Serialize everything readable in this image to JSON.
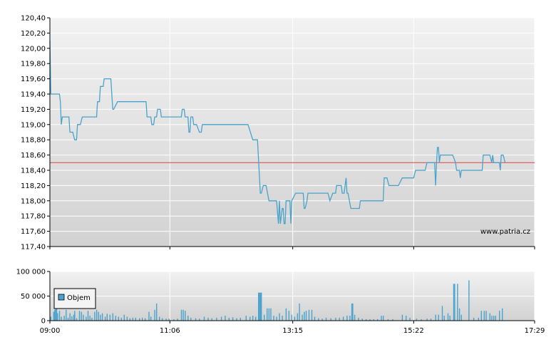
{
  "watermark": "www.patria.cz",
  "colors": {
    "price_line": "#4aa3cc",
    "reference_line": "#e04040",
    "volume_bar": "#4aa3cc",
    "grid": "#ffffff",
    "plot_bg_top": "#f2f2f2",
    "plot_bg_bottom": "#d2d2d2"
  },
  "chart_data": [
    {
      "type": "line",
      "name": "price",
      "x_tick_labels": [
        "09:00",
        "11:06",
        "13:15",
        "15:22",
        "17:29"
      ],
      "x_range": [
        "09:00",
        "17:29"
      ],
      "y_tick_labels": [
        "117,40",
        "117,60",
        "117,80",
        "118,00",
        "118,20",
        "118,40",
        "118,60",
        "118,80",
        "119,00",
        "119,20",
        "119,40",
        "119,60",
        "119,80",
        "120,00",
        "120,20",
        "120,40"
      ],
      "ylim": [
        117.4,
        120.4
      ],
      "reference_value": 118.5,
      "grid": true,
      "series": [
        {
          "points": [
            [
              "09:00",
              120.1
            ],
            [
              "09:01",
              119.4
            ],
            [
              "09:10",
              119.4
            ],
            [
              "09:11",
              119.3
            ],
            [
              "09:12",
              119.0
            ],
            [
              "09:13",
              119.1
            ],
            [
              "09:20",
              119.1
            ],
            [
              "09:21",
              118.9
            ],
            [
              "09:24",
              118.9
            ],
            [
              "09:26",
              118.8
            ],
            [
              "09:28",
              118.8
            ],
            [
              "09:29",
              119.0
            ],
            [
              "09:32",
              119.0
            ],
            [
              "09:34",
              119.1
            ],
            [
              "09:49",
              119.1
            ],
            [
              "09:50",
              119.3
            ],
            [
              "09:52",
              119.3
            ],
            [
              "09:53",
              119.5
            ],
            [
              "09:56",
              119.5
            ],
            [
              "09:57",
              119.6
            ],
            [
              "10:04",
              119.6
            ],
            [
              "10:06",
              119.2
            ],
            [
              "10:07",
              119.2
            ],
            [
              "10:11",
              119.3
            ],
            [
              "10:41",
              119.3
            ],
            [
              "10:42",
              119.1
            ],
            [
              "10:46",
              119.1
            ],
            [
              "10:47",
              119.0
            ],
            [
              "10:49",
              119.0
            ],
            [
              "10:50",
              119.1
            ],
            [
              "10:52",
              119.1
            ],
            [
              "10:53",
              119.2
            ],
            [
              "10:56",
              119.2
            ],
            [
              "10:57",
              119.1
            ],
            [
              "11:18",
              119.1
            ],
            [
              "11:19",
              119.2
            ],
            [
              "11:21",
              119.2
            ],
            [
              "11:22",
              119.1
            ],
            [
              "11:25",
              119.1
            ],
            [
              "11:26",
              118.9
            ],
            [
              "11:27",
              118.9
            ],
            [
              "11:28",
              119.1
            ],
            [
              "11:30",
              119.1
            ],
            [
              "11:31",
              119.0
            ],
            [
              "11:34",
              119.0
            ],
            [
              "11:37",
              118.9
            ],
            [
              "11:39",
              118.9
            ],
            [
              "11:40",
              119.0
            ],
            [
              "12:28",
              119.0
            ],
            [
              "12:33",
              118.8
            ],
            [
              "12:38",
              118.8
            ],
            [
              "12:41",
              118.1
            ],
            [
              "12:42",
              118.1
            ],
            [
              "12:44",
              118.2
            ],
            [
              "12:47",
              118.2
            ],
            [
              "12:50",
              118.0
            ],
            [
              "12:58",
              118.0
            ],
            [
              "13:00",
              117.7
            ],
            [
              "13:01",
              118.0
            ],
            [
              "13:02",
              117.7
            ],
            [
              "13:04",
              117.9
            ],
            [
              "13:05",
              117.9
            ],
            [
              "13:06",
              117.7
            ],
            [
              "13:07",
              117.7
            ],
            [
              "13:08",
              118.0
            ],
            [
              "13:12",
              118.0
            ],
            [
              "13:13",
              117.7
            ],
            [
              "13:14",
              118.0
            ],
            [
              "13:18",
              118.1
            ],
            [
              "13:26",
              118.1
            ],
            [
              "13:27",
              117.9
            ],
            [
              "13:28",
              117.9
            ],
            [
              "13:30",
              118.0
            ],
            [
              "13:31",
              118.1
            ],
            [
              "13:52",
              118.1
            ],
            [
              "13:54",
              118.0
            ],
            [
              "13:57",
              118.1
            ],
            [
              "14:00",
              118.1
            ],
            [
              "14:01",
              118.2
            ],
            [
              "14:06",
              118.2
            ],
            [
              "14:07",
              118.1
            ],
            [
              "14:09",
              118.1
            ],
            [
              "14:10",
              118.2
            ],
            [
              "14:11",
              118.3
            ],
            [
              "14:12",
              118.1
            ],
            [
              "14:13",
              118.1
            ],
            [
              "14:16",
              117.9
            ],
            [
              "14:25",
              117.9
            ],
            [
              "14:26",
              118.0
            ],
            [
              "14:50",
              118.0
            ],
            [
              "14:51",
              118.3
            ],
            [
              "14:54",
              118.3
            ],
            [
              "14:56",
              118.2
            ],
            [
              "15:06",
              118.2
            ],
            [
              "15:10",
              118.3
            ],
            [
              "15:22",
              118.3
            ],
            [
              "15:24",
              118.4
            ],
            [
              "15:34",
              118.4
            ],
            [
              "15:36",
              118.5
            ],
            [
              "15:44",
              118.5
            ],
            [
              "15:45",
              118.2
            ],
            [
              "15:46",
              118.5
            ],
            [
              "15:47",
              118.7
            ],
            [
              "15:48",
              118.7
            ],
            [
              "15:49",
              118.5
            ],
            [
              "15:50",
              118.6
            ],
            [
              "16:03",
              118.6
            ],
            [
              "16:06",
              118.5
            ],
            [
              "16:07",
              118.4
            ],
            [
              "16:10",
              118.4
            ],
            [
              "16:11",
              118.3
            ],
            [
              "16:12",
              118.4
            ],
            [
              "16:34",
              118.4
            ],
            [
              "16:35",
              118.6
            ],
            [
              "16:42",
              118.6
            ],
            [
              "16:44",
              118.5
            ],
            [
              "16:45",
              118.6
            ],
            [
              "16:46",
              118.5
            ],
            [
              "16:52",
              118.5
            ],
            [
              "16:53",
              118.4
            ],
            [
              "16:54",
              118.6
            ],
            [
              "16:56",
              118.6
            ],
            [
              "16:58",
              118.5
            ]
          ]
        }
      ]
    },
    {
      "type": "bar",
      "name": "volume",
      "legend": "Objem",
      "legend_position": "top-left",
      "x_tick_labels": [
        "09:00",
        "11:06",
        "13:15",
        "15:22",
        "17:29"
      ],
      "x_range": [
        "09:00",
        "17:29"
      ],
      "y_tick_labels": [
        "0",
        "50 000",
        "100 000"
      ],
      "ylim": [
        0,
        100000
      ],
      "grid": true,
      "bars": [
        [
          "09:01",
          8000
        ],
        [
          "09:04",
          18000
        ],
        [
          "09:05",
          22000
        ],
        [
          "09:06",
          35000
        ],
        [
          "09:07",
          35000
        ],
        [
          "09:08",
          15000
        ],
        [
          "09:10",
          20000
        ],
        [
          "09:12",
          8000
        ],
        [
          "09:15",
          10000
        ],
        [
          "09:17",
          22000
        ],
        [
          "09:19",
          6000
        ],
        [
          "09:21",
          15000
        ],
        [
          "09:23",
          9000
        ],
        [
          "09:25",
          12000
        ],
        [
          "09:26",
          20000
        ],
        [
          "09:28",
          5000
        ],
        [
          "09:31",
          20000
        ],
        [
          "09:33",
          18000
        ],
        [
          "09:35",
          12000
        ],
        [
          "09:38",
          8000
        ],
        [
          "09:40",
          20000
        ],
        [
          "09:42",
          10000
        ],
        [
          "09:44",
          6000
        ],
        [
          "09:47",
          18000
        ],
        [
          "09:49",
          22000
        ],
        [
          "09:51",
          18000
        ],
        [
          "09:53",
          12000
        ],
        [
          "09:55",
          15000
        ],
        [
          "09:58",
          8000
        ],
        [
          "10:00",
          14000
        ],
        [
          "10:03",
          12000
        ],
        [
          "10:06",
          15000
        ],
        [
          "10:09",
          10000
        ],
        [
          "10:12",
          8000
        ],
        [
          "10:15",
          6000
        ],
        [
          "10:18",
          12000
        ],
        [
          "10:21",
          8000
        ],
        [
          "10:24",
          5000
        ],
        [
          "10:27",
          6000
        ],
        [
          "10:30",
          6000
        ],
        [
          "10:34",
          5000
        ],
        [
          "10:37",
          6000
        ],
        [
          "10:40",
          5000
        ],
        [
          "10:44",
          18000
        ],
        [
          "10:46",
          8000
        ],
        [
          "10:50",
          22000
        ],
        [
          "10:52",
          35000
        ],
        [
          "10:55",
          8000
        ],
        [
          "10:58",
          5000
        ],
        [
          "11:02",
          4000
        ],
        [
          "11:05",
          4000
        ],
        [
          "11:10",
          3000
        ],
        [
          "11:14",
          4000
        ],
        [
          "11:18",
          22000
        ],
        [
          "11:20",
          22000
        ],
        [
          "11:22",
          20000
        ],
        [
          "11:25",
          10000
        ],
        [
          "11:28",
          6000
        ],
        [
          "11:33",
          5000
        ],
        [
          "11:37",
          4000
        ],
        [
          "11:42",
          8000
        ],
        [
          "11:46",
          6000
        ],
        [
          "11:50",
          5000
        ],
        [
          "11:55",
          6000
        ],
        [
          "12:00",
          8000
        ],
        [
          "12:04",
          10000
        ],
        [
          "12:08",
          6000
        ],
        [
          "12:12",
          7000
        ],
        [
          "12:16",
          5000
        ],
        [
          "12:20",
          6000
        ],
        [
          "12:26",
          10000
        ],
        [
          "12:30",
          8000
        ],
        [
          "12:33",
          10000
        ],
        [
          "12:36",
          8000
        ],
        [
          "12:39",
          57000
        ],
        [
          "12:40",
          57000
        ],
        [
          "12:41",
          57000
        ],
        [
          "12:42",
          57000
        ],
        [
          "12:45",
          12000
        ],
        [
          "12:48",
          25000
        ],
        [
          "12:50",
          25000
        ],
        [
          "12:52",
          25000
        ],
        [
          "12:55",
          10000
        ],
        [
          "12:58",
          8000
        ],
        [
          "13:01",
          15000
        ],
        [
          "13:04",
          10000
        ],
        [
          "13:08",
          25000
        ],
        [
          "13:11",
          20000
        ],
        [
          "13:14",
          12000
        ],
        [
          "13:17",
          8000
        ],
        [
          "13:20",
          15000
        ],
        [
          "13:22",
          35000
        ],
        [
          "13:25",
          12000
        ],
        [
          "13:27",
          18000
        ],
        [
          "13:29",
          20000
        ],
        [
          "13:32",
          22000
        ],
        [
          "13:35",
          22000
        ],
        [
          "13:38",
          8000
        ],
        [
          "13:42",
          5000
        ],
        [
          "13:46",
          4000
        ],
        [
          "13:50",
          6000
        ],
        [
          "13:55",
          5000
        ],
        [
          "14:00",
          6000
        ],
        [
          "14:04",
          6000
        ],
        [
          "14:08",
          8000
        ],
        [
          "14:12",
          10000
        ],
        [
          "14:15",
          10000
        ],
        [
          "14:17",
          35000
        ],
        [
          "14:18",
          35000
        ],
        [
          "14:20",
          12000
        ],
        [
          "14:24",
          6000
        ],
        [
          "14:28",
          4000
        ],
        [
          "14:32",
          3000
        ],
        [
          "14:36",
          3000
        ],
        [
          "14:40",
          3000
        ],
        [
          "14:44",
          3000
        ],
        [
          "14:48",
          10000
        ],
        [
          "14:50",
          10000
        ],
        [
          "14:55",
          3000
        ],
        [
          "15:00",
          3000
        ],
        [
          "15:10",
          12000
        ],
        [
          "15:14",
          10000
        ],
        [
          "15:18",
          6000
        ],
        [
          "15:25",
          4000
        ],
        [
          "15:30",
          3000
        ],
        [
          "15:36",
          4000
        ],
        [
          "15:40",
          4000
        ],
        [
          "15:45",
          12000
        ],
        [
          "15:48",
          12000
        ],
        [
          "15:52",
          30000
        ],
        [
          "15:54",
          10000
        ],
        [
          "15:58",
          15000
        ],
        [
          "16:00",
          10000
        ],
        [
          "16:04",
          75000
        ],
        [
          "16:05",
          75000
        ],
        [
          "16:08",
          75000
        ],
        [
          "16:10",
          25000
        ],
        [
          "16:12",
          12000
        ],
        [
          "16:20",
          82000
        ],
        [
          "16:25",
          6000
        ],
        [
          "16:30",
          6000
        ],
        [
          "16:33",
          20000
        ],
        [
          "16:36",
          20000
        ],
        [
          "16:38",
          20000
        ],
        [
          "16:42",
          15000
        ],
        [
          "16:44",
          10000
        ],
        [
          "16:46",
          10000
        ],
        [
          "16:48",
          10000
        ],
        [
          "16:52",
          20000
        ],
        [
          "16:55",
          25000
        ]
      ]
    }
  ]
}
